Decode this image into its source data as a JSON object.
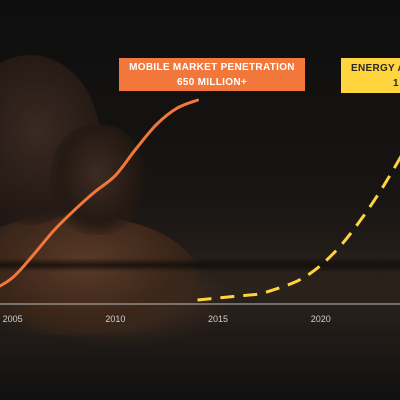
{
  "callouts": {
    "mobile_line1": "MOBILE MARKET PENETRATION",
    "mobile_line2": "650 MILLION+",
    "energy_line1": "ENERGY A",
    "energy_line2": "1"
  },
  "colors": {
    "mobile": "#f2773a",
    "energy": "#ffd43c",
    "axis": "#bdbdbd",
    "tick_text": "#cfcfcf"
  },
  "chart_data": {
    "type": "line",
    "title": "",
    "xlabel": "",
    "ylabel": "",
    "x_ticks": [
      "2005",
      "2010",
      "2015",
      "2020"
    ],
    "xlim": [
      2002,
      2026
    ],
    "ylim": [
      0,
      100
    ],
    "grid": false,
    "legend": "none",
    "series": [
      {
        "key": "mobile",
        "style": "solid",
        "x": [
          2002,
          2003,
          2004,
          2005,
          2006,
          2007,
          2008,
          2009,
          2010,
          2011,
          2012,
          2013,
          2014
        ],
        "y": [
          0,
          2,
          5,
          11,
          22,
          34,
          44,
          53,
          61,
          74,
          86,
          94,
          98
        ]
      },
      {
        "key": "energy",
        "style": "dashed",
        "x": [
          2014,
          2015,
          2016,
          2017,
          2018,
          2019,
          2020,
          2021,
          2022,
          2023,
          2024,
          2025
        ],
        "y": [
          0,
          1,
          2,
          3,
          6,
          10,
          17,
          27,
          40,
          55,
          72,
          90
        ]
      }
    ]
  }
}
